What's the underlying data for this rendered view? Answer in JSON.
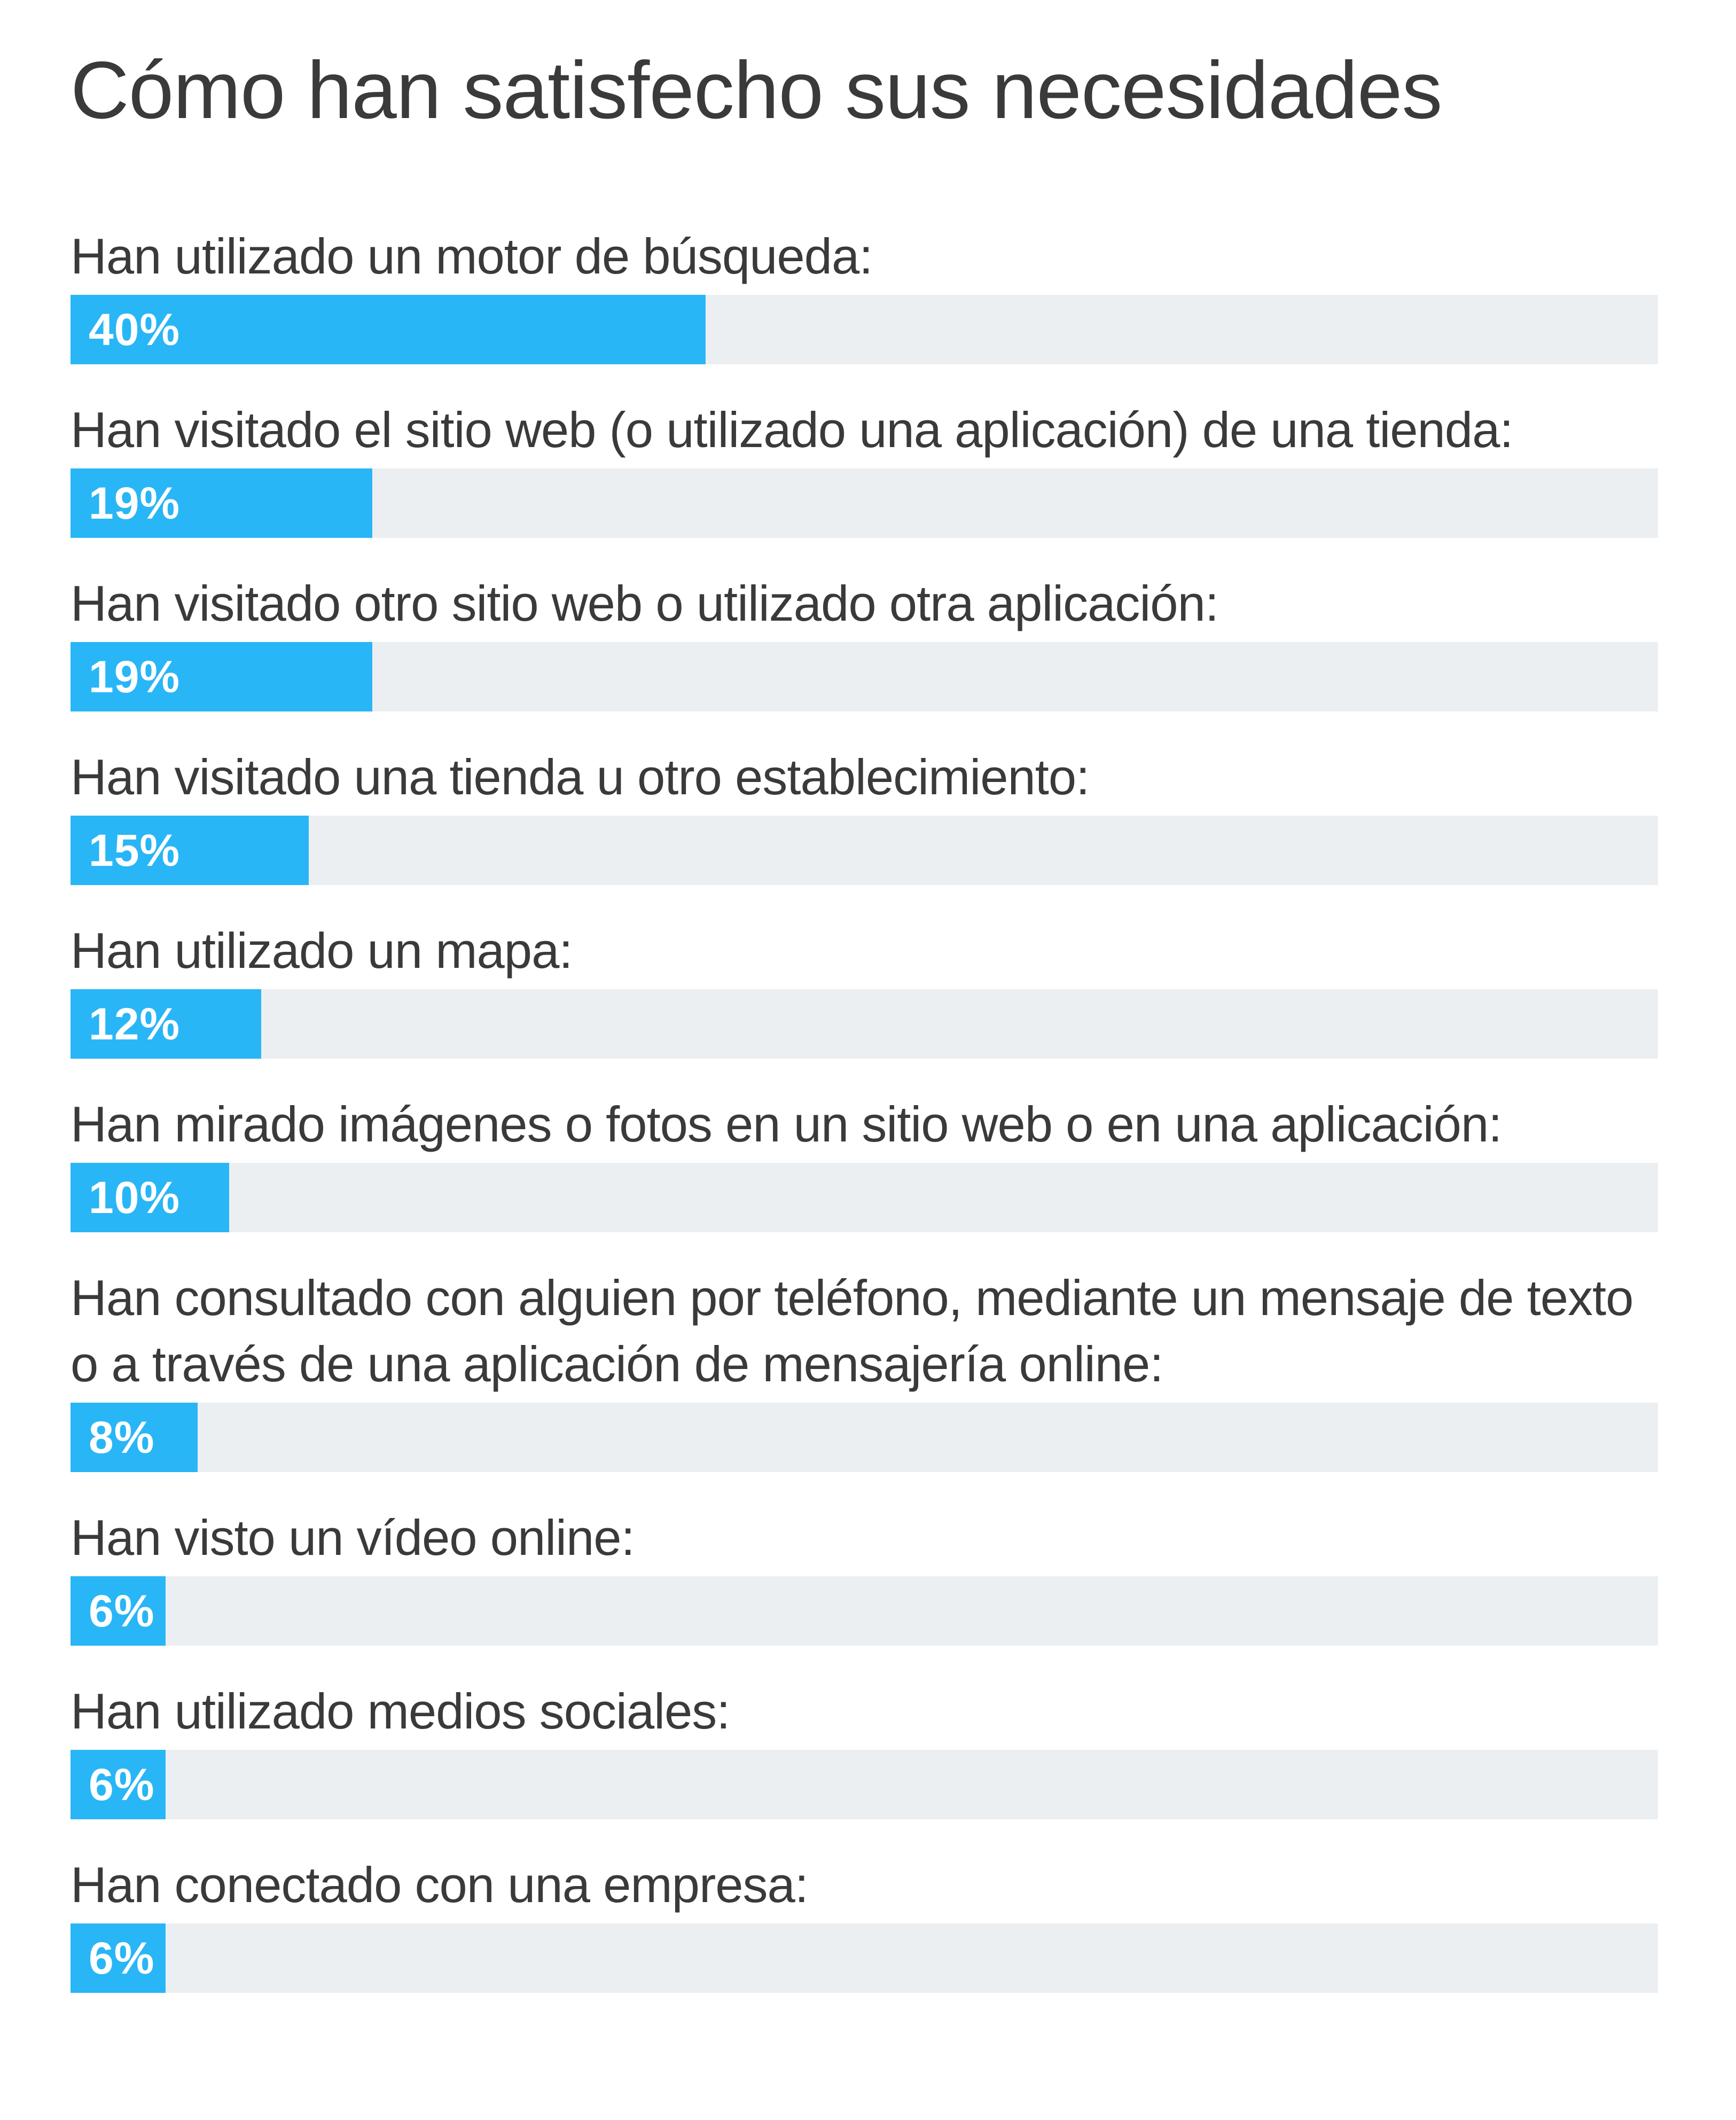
{
  "title": "Cómo han satisfecho sus necesidades",
  "colors": {
    "bar_fill": "#29b6f6",
    "bar_track": "#eceff1",
    "label_text": "#3a3a3a",
    "value_text": "#ffffff"
  },
  "chart_data": {
    "type": "bar",
    "orientation": "horizontal",
    "title": "Cómo han satisfecho sus necesidades",
    "xlim": [
      0,
      100
    ],
    "grid": false,
    "categories": [
      "Han utilizado un motor de búsqueda:",
      "Han visitado el sitio web (o utilizado una aplicación) de una tienda:",
      "Han visitado otro sitio web o utilizado otra aplicación:",
      "Han visitado una tienda u otro establecimiento:",
      "Han utilizado un mapa:",
      "Han mirado imágenes o fotos en un sitio web o en una aplicación:",
      "Han consultado con alguien por teléfono, mediante un mensaje de texto o a través de una aplicación de mensajería online:",
      "Han visto un vídeo online:",
      "Han utilizado medios sociales:",
      "Han conectado con una empresa:"
    ],
    "values": [
      40,
      19,
      19,
      15,
      12,
      10,
      8,
      6,
      6,
      6
    ],
    "value_labels": [
      "40%",
      "19%",
      "19%",
      "15%",
      "12%",
      "10%",
      "8%",
      "6%",
      "6%",
      "6%"
    ]
  }
}
